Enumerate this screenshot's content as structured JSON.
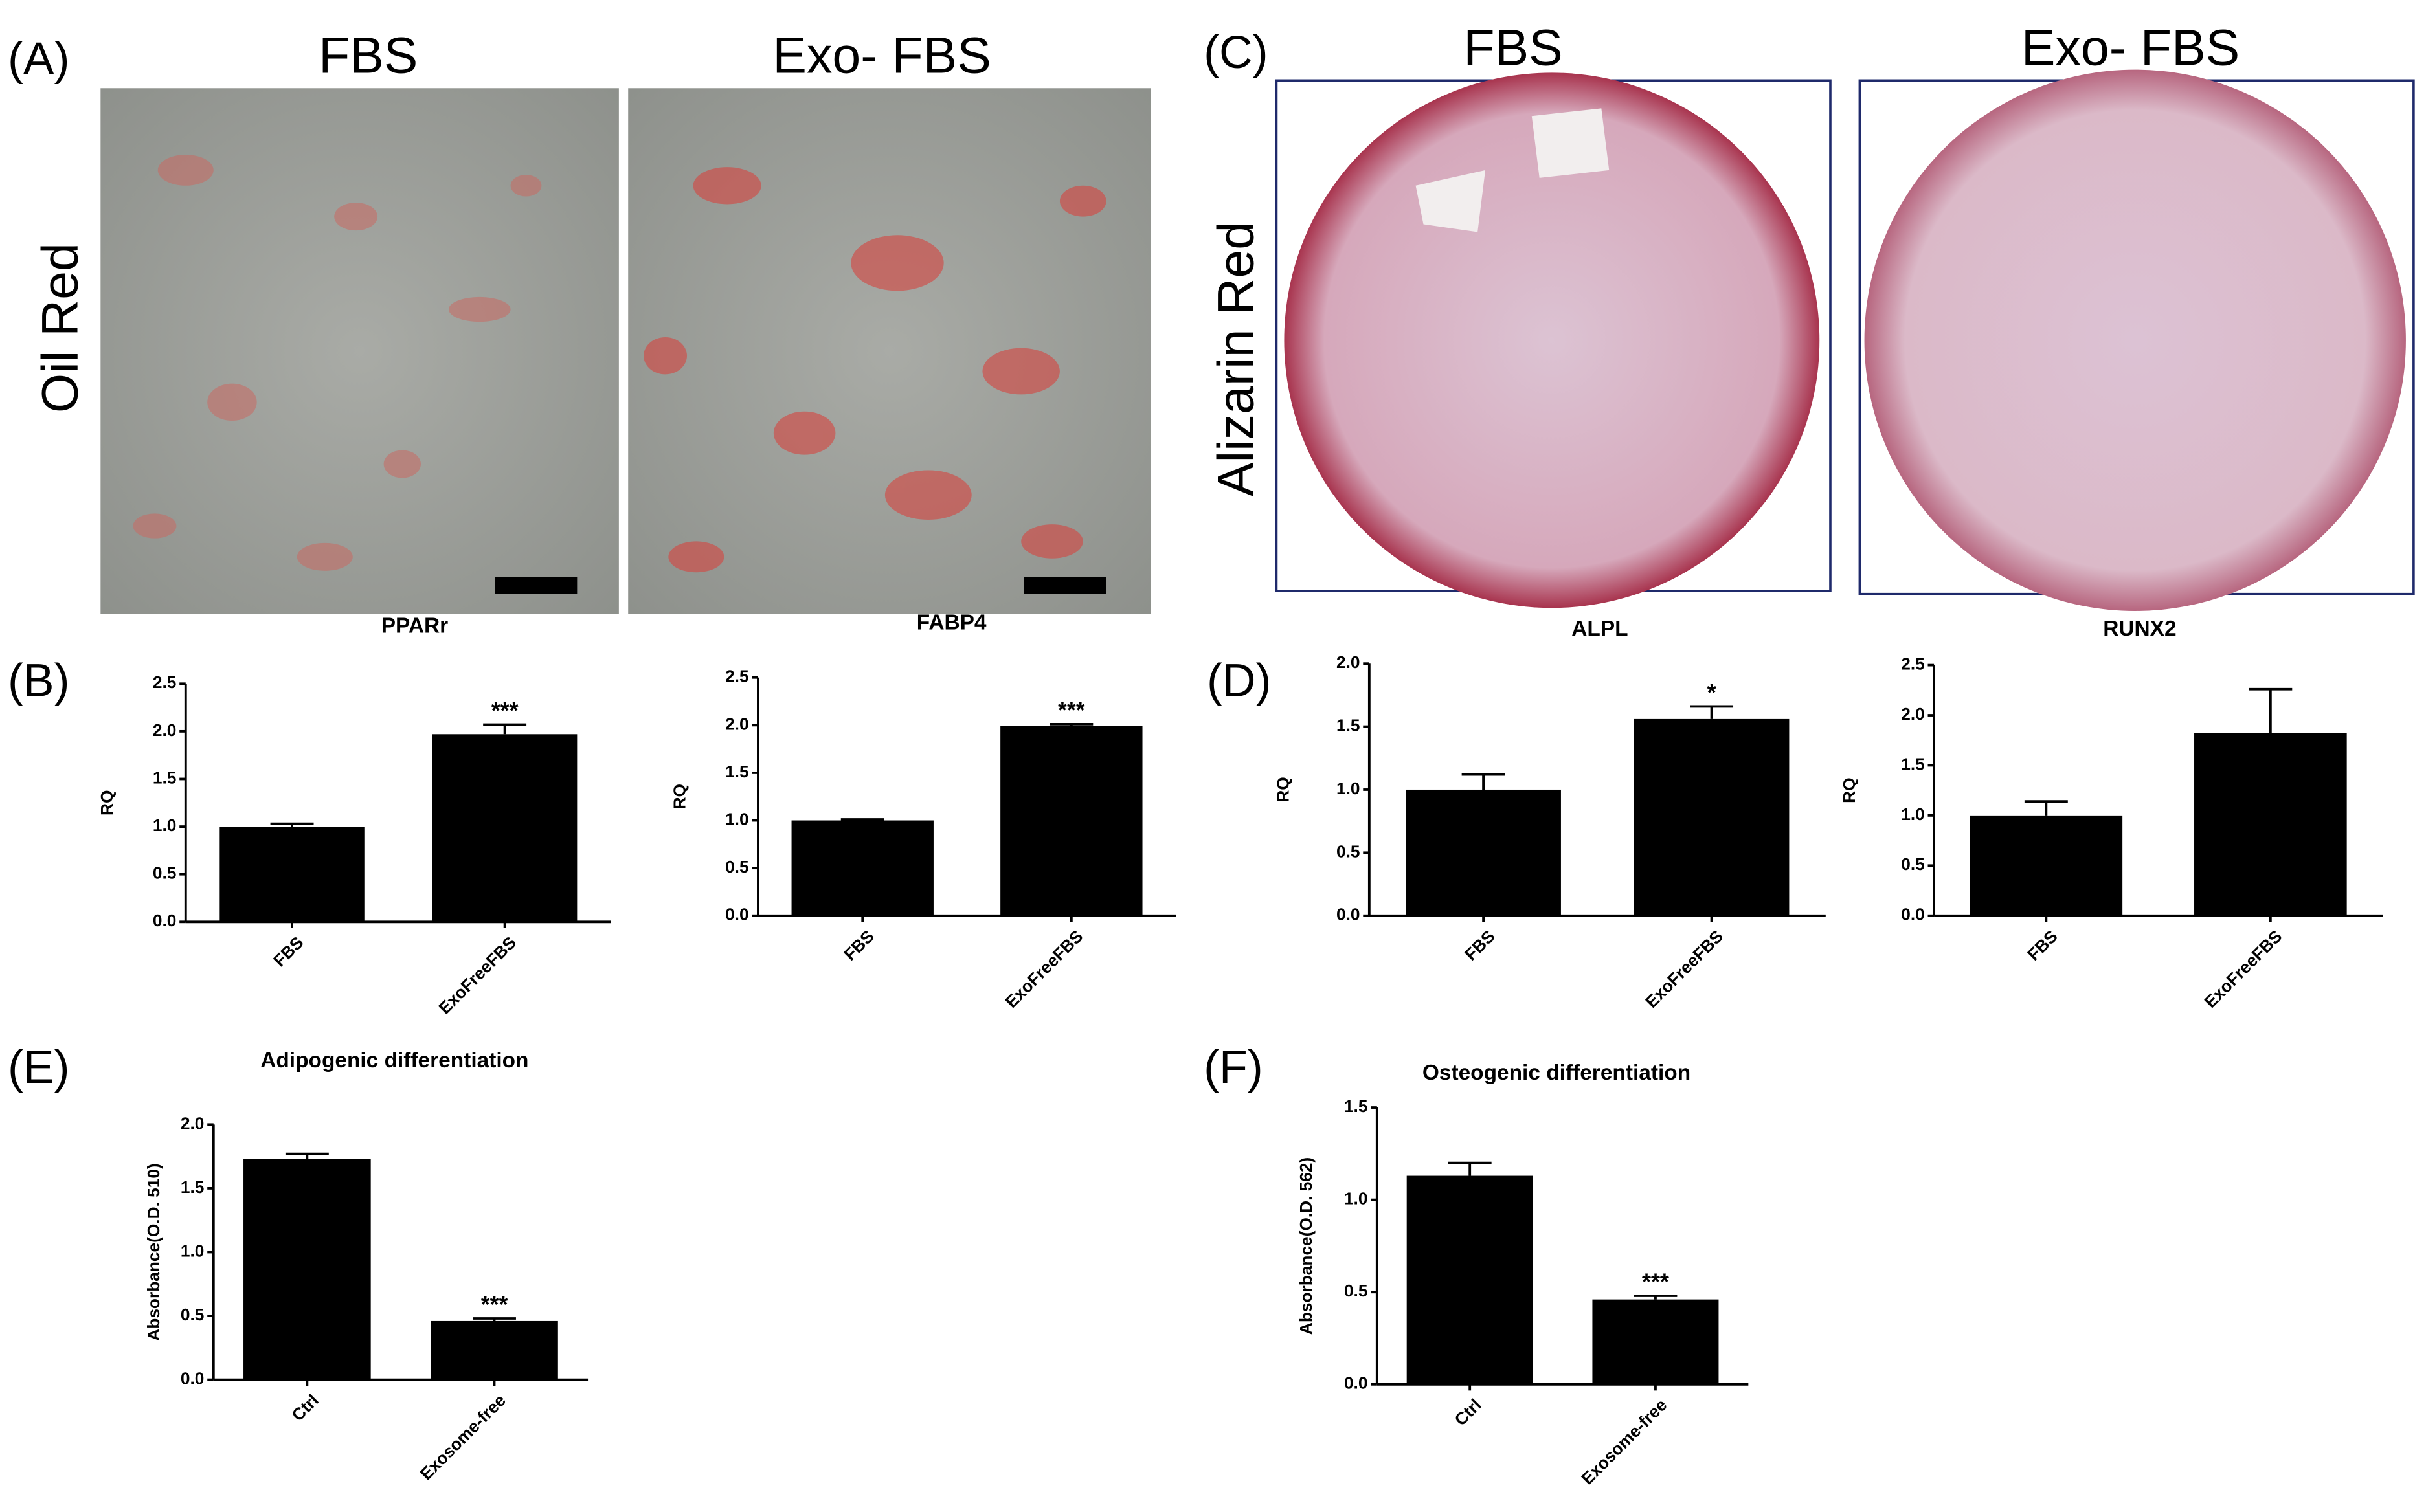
{
  "figure": {
    "labels": [
      "(A)",
      "(B)",
      "(C)",
      "(D)",
      "(E)",
      "(F)"
    ],
    "image_panels": [
      {
        "row_label": "Oil Red",
        "columns": [
          "FBS",
          "Exo- FBS"
        ]
      },
      {
        "row_label": "Alizarin Red",
        "columns": [
          "FBS",
          "Exo- FBS"
        ]
      }
    ]
  },
  "chart_data": [
    {
      "type": "bar",
      "title": "PPARr",
      "y_label": "RQ",
      "categories": [
        "FBS",
        "ExoFreeFBS"
      ],
      "values": [
        1.0,
        1.97
      ],
      "errors": [
        0.03,
        0.1
      ],
      "annotations": [
        null,
        "***"
      ],
      "color": "#000000",
      "ylim": [
        0,
        2.5
      ],
      "yticks": [
        {
          "value": 0,
          "label": "0.0"
        },
        0.5,
        {
          "value": 1,
          "label": "1.0"
        },
        1.5,
        {
          "value": 2,
          "label": "2.0"
        },
        2.5
      ]
    },
    {
      "type": "bar",
      "title": "FABP4",
      "y_label": "RQ",
      "categories": [
        "FBS",
        "ExoFreeFBS"
      ],
      "values": [
        1.0,
        1.99
      ],
      "errors": [
        0.01,
        0.02
      ],
      "annotations": [
        null,
        "***"
      ],
      "color": "#000000",
      "ylim": [
        0,
        2.5
      ],
      "yticks": [
        {
          "value": 0,
          "label": "0.0"
        },
        0.5,
        {
          "value": 1,
          "label": "1.0"
        },
        1.5,
        {
          "value": 2,
          "label": "2.0"
        },
        2.5
      ]
    },
    {
      "type": "bar",
      "title": "ALPL",
      "y_label": "RQ",
      "categories": [
        "FBS",
        "ExoFreeFBS"
      ],
      "values": [
        1.0,
        1.56
      ],
      "errors": [
        0.12,
        0.1
      ],
      "annotations": [
        null,
        "*"
      ],
      "color": "#000000",
      "ylim": [
        0,
        2.0
      ],
      "yticks": [
        {
          "value": 0,
          "label": "0.0"
        },
        0.5,
        {
          "value": 1,
          "label": "1.0"
        },
        1.5,
        {
          "value": 2,
          "label": "2.0"
        }
      ]
    },
    {
      "type": "bar",
      "title": "RUNX2",
      "y_label": "RQ",
      "categories": [
        "FBS",
        "ExoFreeFBS"
      ],
      "values": [
        1.0,
        1.82
      ],
      "errors": [
        0.14,
        0.44
      ],
      "color": "#000000",
      "ylim": [
        0,
        2.5
      ],
      "yticks": [
        {
          "value": 0,
          "label": "0.0"
        },
        0.5,
        {
          "value": 1,
          "label": "1.0"
        },
        1.5,
        {
          "value": 2,
          "label": "2.0"
        },
        2.5
      ]
    },
    {
      "type": "bar",
      "title": "Adipogenic differentiation",
      "y_label": "Absorbance(O.D. 510)",
      "categories": [
        "Ctrl",
        "Exosome-free"
      ],
      "values": [
        1.73,
        0.46
      ],
      "errors": [
        0.04,
        0.02
      ],
      "annotations": [
        null,
        "***"
      ],
      "color": "#000000",
      "ylim": [
        0,
        2.0
      ],
      "yticks": [
        {
          "value": 0,
          "label": "0.0"
        },
        0.5,
        {
          "value": 1,
          "label": "1.0"
        },
        1.5,
        {
          "value": 2,
          "label": "2.0"
        }
      ]
    },
    {
      "type": "bar",
      "title": "Osteogenic differentiation",
      "y_label": "Absorbance(O.D. 562)",
      "categories": [
        "Ctrl",
        "Exosome-free"
      ],
      "values": [
        1.13,
        0.46
      ],
      "errors": [
        0.07,
        0.02
      ],
      "annotations": [
        null,
        "***"
      ],
      "color": "#000000",
      "ylim": [
        0,
        1.5
      ],
      "yticks": [
        {
          "value": 0,
          "label": "0.0"
        },
        0.5,
        {
          "value": 1,
          "label": "1.0"
        },
        1.5
      ]
    }
  ]
}
